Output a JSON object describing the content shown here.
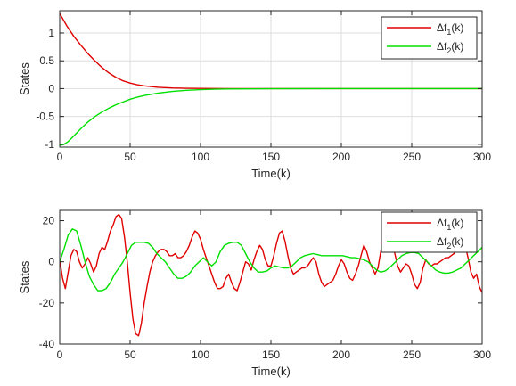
{
  "chart_data": [
    {
      "type": "line",
      "xlabel": "Time(k)",
      "ylabel": "States",
      "xlim": [
        0,
        300
      ],
      "ylim": [
        -1.05,
        1.4
      ],
      "xticks": [
        0,
        50,
        100,
        150,
        200,
        250,
        300
      ],
      "yticks": [
        -1,
        -0.5,
        0,
        0.5,
        1
      ],
      "xtick_labels": [
        "0",
        "50",
        "100",
        "150",
        "200",
        "250",
        "300"
      ],
      "ytick_labels": [
        "-1",
        "-0.5",
        "0",
        "0.5",
        "1"
      ],
      "grid": true,
      "legend_position": "top-right",
      "series": [
        {
          "name_main": "Δf",
          "name_sub": "1",
          "name_suffix": "(k)",
          "color": "#e00000",
          "x": [
            0,
            5,
            10,
            15,
            20,
            25,
            30,
            35,
            40,
            45,
            50,
            55,
            60,
            70,
            80,
            90,
            100,
            120,
            150,
            200,
            250,
            300
          ],
          "y": [
            1.35,
            1.13,
            0.94,
            0.78,
            0.63,
            0.5,
            0.38,
            0.28,
            0.2,
            0.14,
            0.1,
            0.07,
            0.05,
            0.025,
            0.012,
            0.006,
            0.003,
            0.001,
            0,
            0,
            0,
            0
          ]
        },
        {
          "name_main": "Δf",
          "name_sub": "2",
          "name_suffix": "(k)",
          "color": "#00e000",
          "x": [
            0,
            3,
            6,
            10,
            15,
            20,
            25,
            30,
            35,
            40,
            45,
            50,
            55,
            60,
            70,
            80,
            90,
            100,
            110,
            120,
            150,
            200,
            250,
            300
          ],
          "y": [
            -1.02,
            -1.0,
            -0.95,
            -0.85,
            -0.72,
            -0.6,
            -0.5,
            -0.42,
            -0.35,
            -0.29,
            -0.24,
            -0.19,
            -0.155,
            -0.125,
            -0.08,
            -0.05,
            -0.03,
            -0.018,
            -0.01,
            -0.006,
            -0.002,
            0,
            0,
            0
          ]
        }
      ]
    },
    {
      "type": "line",
      "xlabel": "Time(k)",
      "ylabel": "States",
      "xlim": [
        0,
        300
      ],
      "ylim": [
        -40,
        25
      ],
      "xticks": [
        0,
        50,
        100,
        150,
        200,
        250,
        300
      ],
      "yticks": [
        -40,
        -20,
        0,
        20
      ],
      "xtick_labels": [
        "0",
        "50",
        "100",
        "150",
        "200",
        "250",
        "300"
      ],
      "ytick_labels": [
        "-40",
        "-20",
        "0",
        "20"
      ],
      "grid": false,
      "legend_position": "top-right",
      "series": [
        {
          "name_main": "Δf",
          "name_sub": "1",
          "name_suffix": "(k)",
          "color": "#e00000",
          "x": [
            0,
            2,
            4,
            6,
            8,
            10,
            12,
            14,
            16,
            18,
            20,
            22,
            24,
            26,
            28,
            30,
            32,
            34,
            36,
            38,
            40,
            42,
            44,
            46,
            48,
            50,
            52,
            54,
            56,
            58,
            60,
            62,
            64,
            66,
            68,
            70,
            72,
            74,
            76,
            78,
            80,
            82,
            84,
            86,
            88,
            90,
            92,
            94,
            96,
            98,
            100,
            102,
            104,
            106,
            108,
            110,
            112,
            114,
            116,
            118,
            120,
            122,
            124,
            126,
            128,
            130,
            132,
            134,
            136,
            138,
            140,
            142,
            144,
            146,
            148,
            150,
            152,
            154,
            156,
            158,
            160,
            162,
            164,
            166,
            168,
            170,
            172,
            174,
            176,
            178,
            180,
            182,
            184,
            186,
            188,
            190,
            192,
            194,
            196,
            198,
            200,
            202,
            204,
            206,
            208,
            210,
            212,
            214,
            216,
            218,
            220,
            222,
            224,
            226,
            228,
            230,
            232,
            234,
            236,
            238,
            240,
            242,
            244,
            246,
            248,
            250,
            252,
            254,
            256,
            258,
            260,
            262,
            264,
            266,
            268,
            270,
            272,
            274,
            276,
            278,
            280,
            282,
            284,
            286,
            288,
            290,
            292,
            294,
            296,
            298,
            300
          ],
          "y": [
            1,
            -8,
            -13,
            -5,
            3,
            6,
            5,
            0,
            -3,
            -1,
            2,
            -1,
            -5,
            -2,
            4,
            7,
            6,
            10,
            15,
            18,
            22,
            23,
            21,
            12,
            0,
            -15,
            -28,
            -35,
            -36,
            -30,
            -20,
            -12,
            -5,
            0,
            3,
            5,
            6,
            6,
            5,
            3,
            3,
            4,
            2,
            2,
            3,
            5,
            8,
            12,
            15,
            14,
            11,
            6,
            2,
            -2,
            -6,
            -10,
            -13,
            -13,
            -12,
            -8,
            -6,
            -10,
            -13,
            -14,
            -10,
            -5,
            0,
            -1,
            -4,
            1,
            5,
            8,
            6,
            1,
            -2,
            -2,
            3,
            9,
            14,
            15,
            10,
            3,
            -3,
            -6,
            -5,
            -4,
            -3,
            -3,
            -2,
            0,
            2,
            0,
            -6,
            -10,
            -12,
            -11,
            -10,
            -9,
            -6,
            -2,
            1,
            -1,
            -5,
            -8,
            -9,
            -6,
            -2,
            3,
            8,
            5,
            0,
            -3,
            -6,
            -3,
            5,
            12,
            16,
            14,
            10,
            4,
            -2,
            -5,
            -3,
            -1,
            -2,
            -6,
            -11,
            -13,
            -10,
            -3,
            1,
            -1,
            -2,
            -1,
            -1,
            0,
            1,
            2,
            2,
            3,
            4,
            6,
            7,
            9,
            8,
            2,
            -5,
            -8,
            -6,
            -12,
            -15
          ]
        },
        {
          "name_main": "Δf",
          "name_sub": "2",
          "name_suffix": "(k)",
          "color": "#00e000",
          "x": [
            0,
            3,
            6,
            9,
            12,
            15,
            18,
            21,
            24,
            27,
            30,
            33,
            36,
            39,
            42,
            45,
            48,
            51,
            54,
            57,
            60,
            63,
            66,
            69,
            72,
            75,
            78,
            81,
            84,
            87,
            90,
            93,
            96,
            99,
            102,
            105,
            108,
            111,
            114,
            117,
            120,
            123,
            126,
            129,
            132,
            135,
            138,
            141,
            144,
            147,
            150,
            153,
            156,
            159,
            162,
            165,
            168,
            171,
            174,
            177,
            180,
            183,
            186,
            189,
            192,
            195,
            198,
            201,
            204,
            207,
            210,
            213,
            216,
            219,
            222,
            225,
            228,
            231,
            234,
            237,
            240,
            243,
            246,
            249,
            252,
            255,
            258,
            261,
            264,
            267,
            270,
            273,
            276,
            279,
            282,
            285,
            288,
            291,
            294,
            297,
            300
          ],
          "y": [
            0,
            6,
            13,
            16,
            15,
            8,
            0,
            -7,
            -11,
            -14,
            -14,
            -13,
            -10,
            -6,
            -3,
            0,
            4,
            8,
            9.5,
            9.5,
            9.5,
            9,
            7,
            4,
            2,
            0,
            -3,
            -6,
            -8,
            -8,
            -7,
            -5,
            -2,
            0,
            2,
            0,
            -2,
            0,
            5,
            8,
            9,
            9.5,
            9.5,
            8,
            4,
            0,
            -3,
            -5,
            -5,
            -4.5,
            -3,
            -2,
            -2.5,
            -3,
            -3,
            -2,
            0,
            2,
            3,
            3.5,
            4,
            3.5,
            3,
            3,
            3,
            3,
            3,
            3,
            2.5,
            2,
            2,
            1.5,
            1,
            0,
            -2,
            -4,
            -5,
            -4.5,
            -3,
            -1,
            1,
            3,
            4,
            4.5,
            4.5,
            4,
            2,
            0,
            -2,
            -4,
            -5,
            -5.5,
            -5.5,
            -5,
            -4,
            -3,
            -1,
            1,
            3,
            5,
            7
          ]
        }
      ]
    }
  ]
}
